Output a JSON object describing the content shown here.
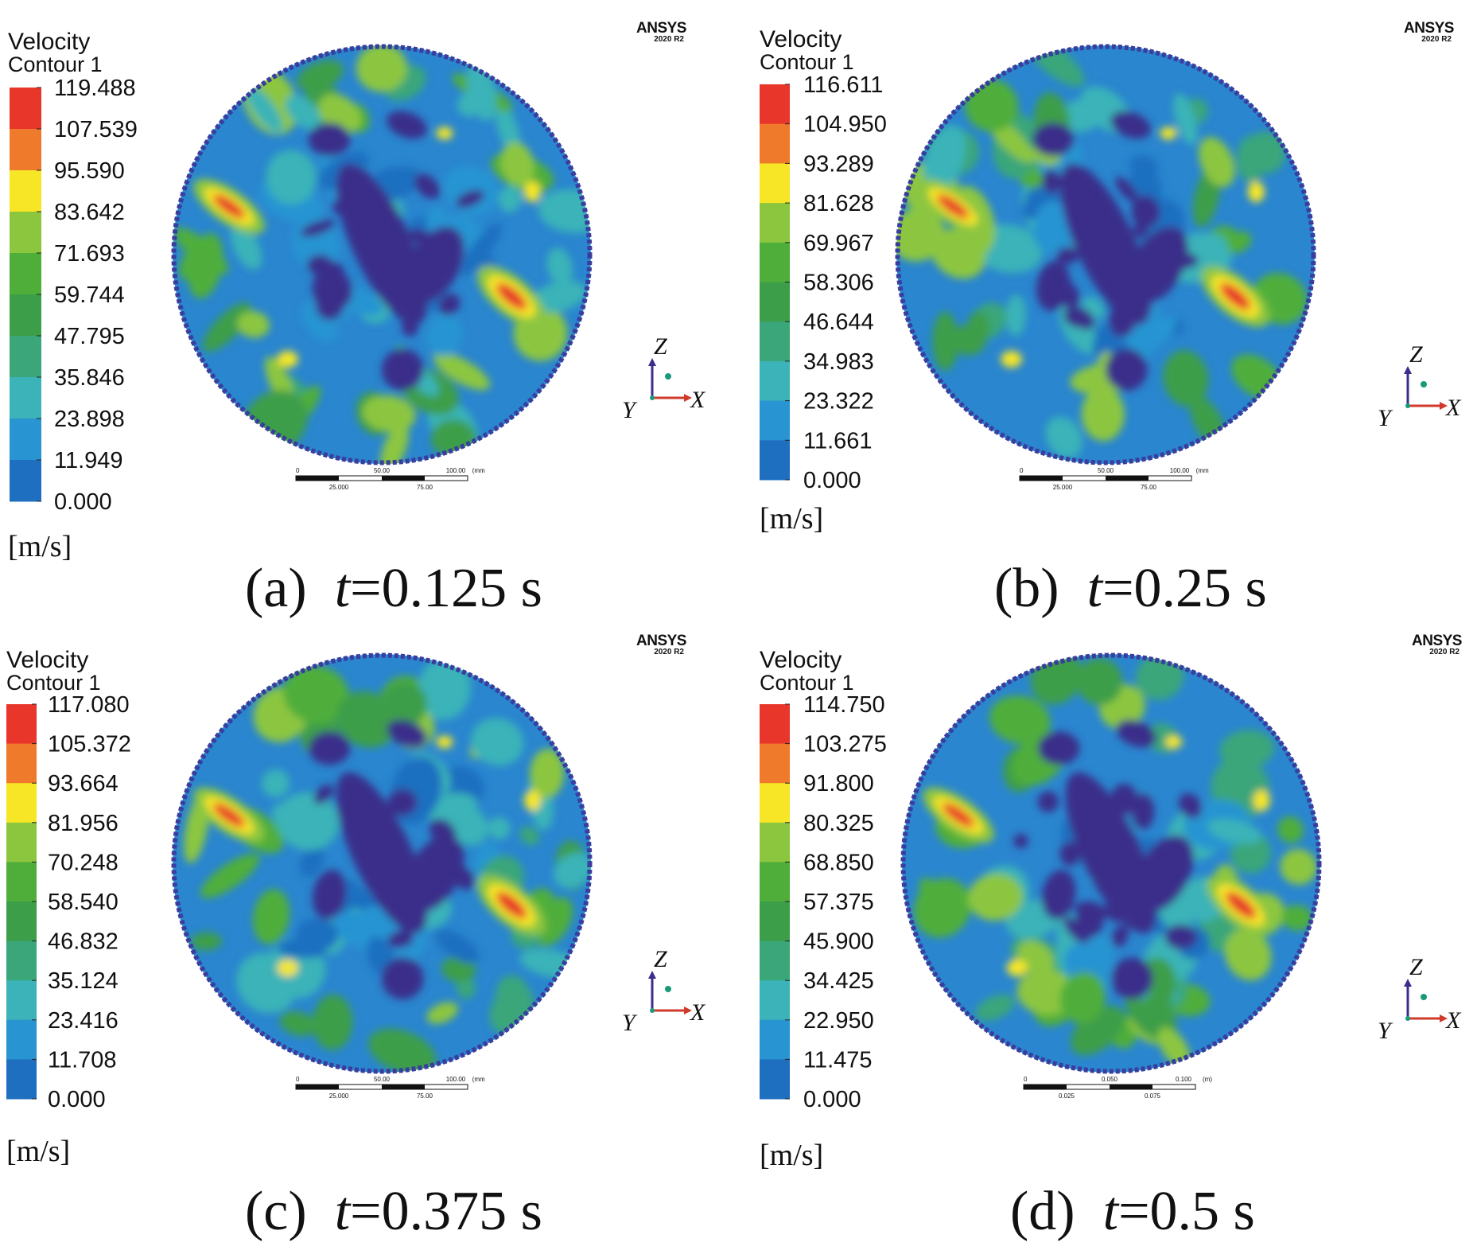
{
  "chart_data": [
    {
      "type": "heatmap",
      "panel": "a",
      "caption": {
        "label": "(a)",
        "var": "t",
        "rest": "=0.125 s"
      },
      "legend": {
        "title1": "Velocity",
        "title2": "Contour 1",
        "unit": "[m/s]",
        "levels": [
          "119.488",
          "107.539",
          "95.590",
          "83.642",
          "71.693",
          "59.744",
          "47.795",
          "35.846",
          "23.898",
          "11.949",
          "0.000"
        ]
      },
      "logo": {
        "name": "ANSYS",
        "version": "2020 R2"
      },
      "triad": {
        "z": "Z",
        "x": "X",
        "y": "Y"
      },
      "scale": {
        "top": [
          "0",
          "50.00",
          "100.00",
          "(mm)"
        ],
        "bottom": [
          "25.000",
          "75.00"
        ]
      }
    },
    {
      "type": "heatmap",
      "panel": "b",
      "caption": {
        "label": "(b)",
        "var": "t",
        "rest": "=0.25 s"
      },
      "legend": {
        "title1": "Velocity",
        "title2": "Contour 1",
        "unit": "[m/s]",
        "levels": [
          "116.611",
          "104.950",
          "93.289",
          "81.628",
          "69.967",
          "58.306",
          "46.644",
          "34.983",
          "23.322",
          "11.661",
          "0.000"
        ]
      },
      "logo": {
        "name": "ANSYS",
        "version": "2020 R2"
      },
      "triad": {
        "z": "Z",
        "x": "X",
        "y": "Y"
      },
      "scale": {
        "top": [
          "0",
          "50.00",
          "100.00",
          "(mm)"
        ],
        "bottom": [
          "25.000",
          "75.00"
        ]
      }
    },
    {
      "type": "heatmap",
      "panel": "c",
      "caption": {
        "label": "(c)",
        "var": "t",
        "rest": "=0.375 s"
      },
      "legend": {
        "title1": "Velocity",
        "title2": "Contour 1",
        "unit": "[m/s]",
        "levels": [
          "117.080",
          "105.372",
          "93.664",
          "81.956",
          "70.248",
          "58.540",
          "46.832",
          "35.124",
          "23.416",
          "11.708",
          "0.000"
        ]
      },
      "logo": {
        "name": "ANSYS",
        "version": "2020 R2"
      },
      "triad": {
        "z": "Z",
        "x": "X",
        "y": "Y"
      },
      "scale": {
        "top": [
          "0",
          "50.00",
          "100.00",
          "(mm)"
        ],
        "bottom": [
          "25.000",
          "75.00"
        ]
      }
    },
    {
      "type": "heatmap",
      "panel": "d",
      "caption": {
        "label": "(d)",
        "var": "t",
        "rest": "=0.5 s"
      },
      "legend": {
        "title1": "Velocity",
        "title2": "Contour 1",
        "unit": "[m/s]",
        "levels": [
          "114.750",
          "103.275",
          "91.800",
          "80.325",
          "68.850",
          "57.375",
          "45.900",
          "34.425",
          "22.950",
          "11.475",
          "0.000"
        ]
      },
      "logo": {
        "name": "ANSYS",
        "version": "2020 R2"
      },
      "triad": {
        "z": "Z",
        "x": "X",
        "y": "Y"
      },
      "scale": {
        "top": [
          "0",
          "0.050",
          "0.100",
          "(m)"
        ],
        "bottom": [
          "0.025",
          "0.075"
        ]
      }
    }
  ],
  "colors": {
    "colormap": [
      "#e8362a",
      "#f07a2b",
      "#f6e625",
      "#8cc63f",
      "#4fae3a",
      "#3c9e49",
      "#3aa67a",
      "#3bb3b8",
      "#2894d2",
      "#1f6fc0",
      "#3a2e8a"
    ],
    "circle_base": "#2a86cf",
    "ring": "#3a3d9e",
    "axis_z": "#3a2e8a",
    "axis_x": "#d03a2a",
    "axis_y": "#1a9a7a"
  }
}
